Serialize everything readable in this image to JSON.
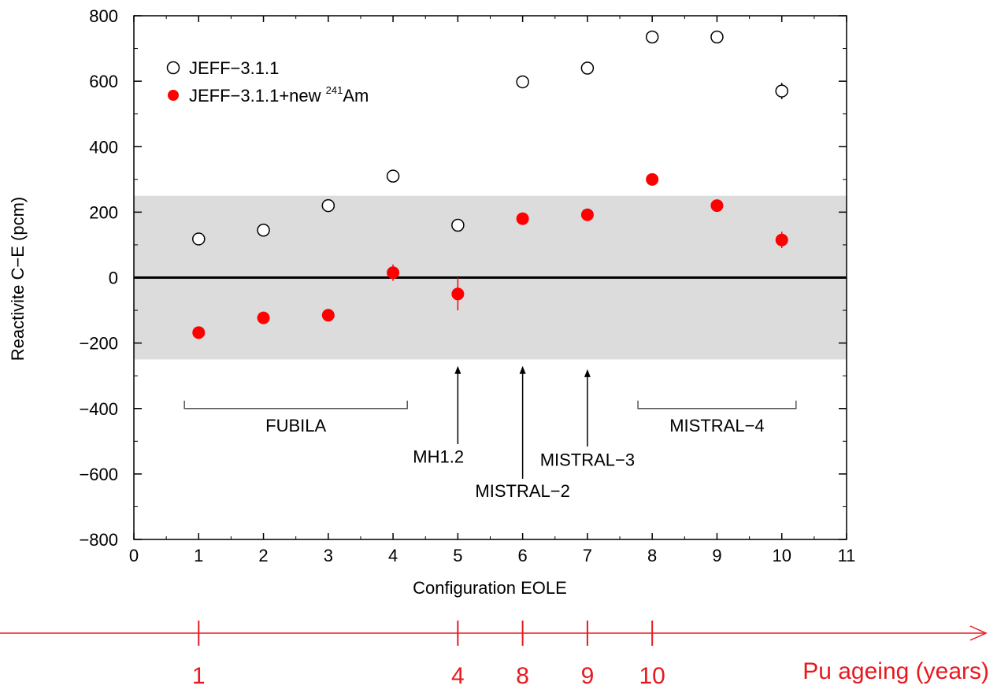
{
  "chart_data": {
    "type": "scatter",
    "xlabel": "Configuration EOLE",
    "ylabel": "Reactivite C−E (pcm)",
    "xlim": [
      0,
      11
    ],
    "ylim": [
      -800,
      800
    ],
    "x_ticks": [
      "0",
      "1",
      "2",
      "3",
      "4",
      "5",
      "6",
      "7",
      "8",
      "9",
      "10",
      "11"
    ],
    "y_ticks": [
      "800",
      "600",
      "400",
      "200",
      "0",
      "−200",
      "−400",
      "−600",
      "−800"
    ],
    "band": [
      -250,
      250
    ],
    "zero_line": 0,
    "legend_position": "top-left",
    "series": [
      {
        "name": "JEFF−3.1.1",
        "marker": "open-circle",
        "color": "#000000",
        "points": [
          {
            "x": 1,
            "y": 118
          },
          {
            "x": 2,
            "y": 145
          },
          {
            "x": 3,
            "y": 220
          },
          {
            "x": 4,
            "y": 310
          },
          {
            "x": 5,
            "y": 160
          },
          {
            "x": 6,
            "y": 598
          },
          {
            "x": 7,
            "y": 640
          },
          {
            "x": 8,
            "y": 735
          },
          {
            "x": 9,
            "y": 735
          },
          {
            "x": 10,
            "y": 570,
            "err": 25
          }
        ]
      },
      {
        "name": "JEFF−3.1.1+new",
        "name_sup": "241",
        "name_suffix": "Am",
        "marker": "filled-circle",
        "color": "#ff0000",
        "points": [
          {
            "x": 1,
            "y": -168
          },
          {
            "x": 2,
            "y": -123
          },
          {
            "x": 3,
            "y": -115
          },
          {
            "x": 4,
            "y": 15,
            "err": 25
          },
          {
            "x": 5,
            "y": -50,
            "err": 50
          },
          {
            "x": 6,
            "y": 180
          },
          {
            "x": 7,
            "y": 192
          },
          {
            "x": 8,
            "y": 300
          },
          {
            "x": 9,
            "y": 220
          },
          {
            "x": 10,
            "y": 115,
            "err": 25
          }
        ]
      }
    ],
    "annotations": {
      "fubila": "FUBILA",
      "mistral4": "MISTRAL−4",
      "mh12": "MH1.2",
      "mistral2": "MISTRAL−2",
      "mistral3": "MISTRAL−3"
    }
  },
  "ageing_axis": {
    "label": "Pu ageing (years)",
    "ticks": [
      {
        "config": 1,
        "label": "1"
      },
      {
        "config": 5,
        "label": "4"
      },
      {
        "config": 6,
        "label": "8"
      },
      {
        "config": 7,
        "label": "9"
      },
      {
        "config": 8,
        "label": "10"
      }
    ],
    "color": "#e8191f"
  }
}
